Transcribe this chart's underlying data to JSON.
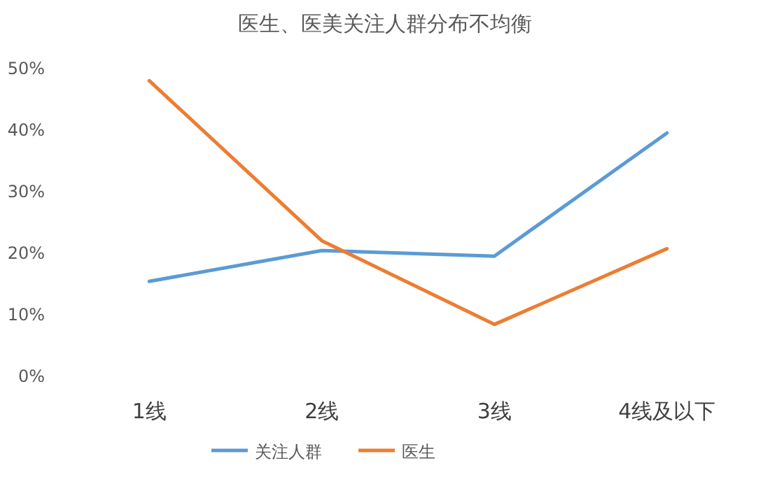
{
  "chart_data": {
    "type": "line",
    "title": "医生、医美关注人群分布不均衡",
    "categories": [
      "1线",
      "2线",
      "3线",
      "4线及以下"
    ],
    "series": [
      {
        "name": "关注人群",
        "color": "#5b9bd5",
        "values": [
          15.2,
          20.2,
          19.3,
          39.3
        ]
      },
      {
        "name": "医生",
        "color": "#ed7d31",
        "values": [
          47.8,
          21.8,
          8.2,
          20.5
        ]
      }
    ],
    "ylim": [
      0,
      50
    ],
    "yticks": [
      {
        "value": 0,
        "label": "0%"
      },
      {
        "value": 10,
        "label": "10%"
      },
      {
        "value": 20,
        "label": "20%"
      },
      {
        "value": 30,
        "label": "30%"
      },
      {
        "value": 40,
        "label": "40%"
      },
      {
        "value": 50,
        "label": "50%"
      }
    ],
    "legend": "bottom",
    "grid": false,
    "marker": "none",
    "line_style": "solid"
  }
}
